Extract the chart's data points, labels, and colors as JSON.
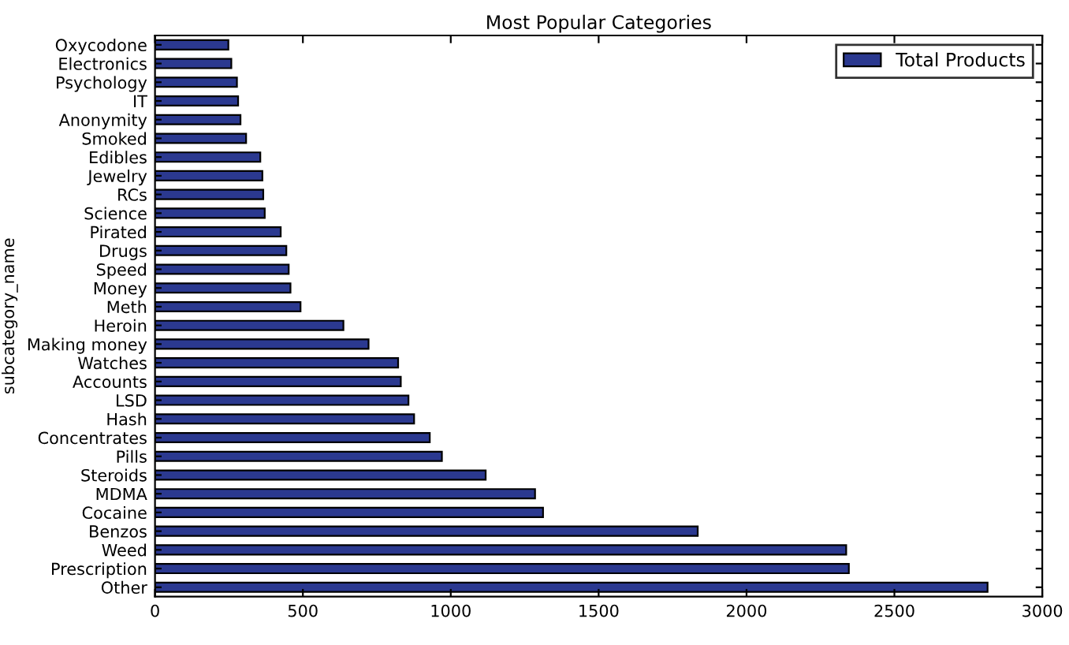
{
  "chart_data": {
    "type": "bar",
    "orientation": "horizontal",
    "title": "Most Popular Categories",
    "ylabel": "subcategory_name",
    "categories": [
      "Oxycodone",
      "Electronics",
      "Psychology",
      "IT",
      "Anonymity",
      "Smoked",
      "Edibles",
      "Jewelry",
      "RCs",
      "Science",
      "Pirated",
      "Drugs",
      "Speed",
      "Money",
      "Meth",
      "Heroin",
      "Making money",
      "Watches",
      "Accounts",
      "LSD",
      "Hash",
      "Concentrates",
      "Pills",
      "Steroids",
      "MDMA",
      "Cocaine",
      "Benzos",
      "Weed",
      "Prescription",
      "Other"
    ],
    "series": [
      {
        "name": "Total Products",
        "color": "#2b3990",
        "values": [
          248,
          258,
          277,
          281,
          289,
          308,
          356,
          363,
          366,
          371,
          425,
          444,
          452,
          458,
          492,
          637,
          722,
          822,
          831,
          857,
          876,
          929,
          970,
          1118,
          1285,
          1312,
          1835,
          2337,
          2346,
          2815
        ]
      }
    ],
    "xlim": [
      0,
      3000
    ],
    "xticks": [
      0,
      500,
      1000,
      1500,
      2000,
      2500,
      3000
    ],
    "grid": false,
    "legend": "top right"
  }
}
